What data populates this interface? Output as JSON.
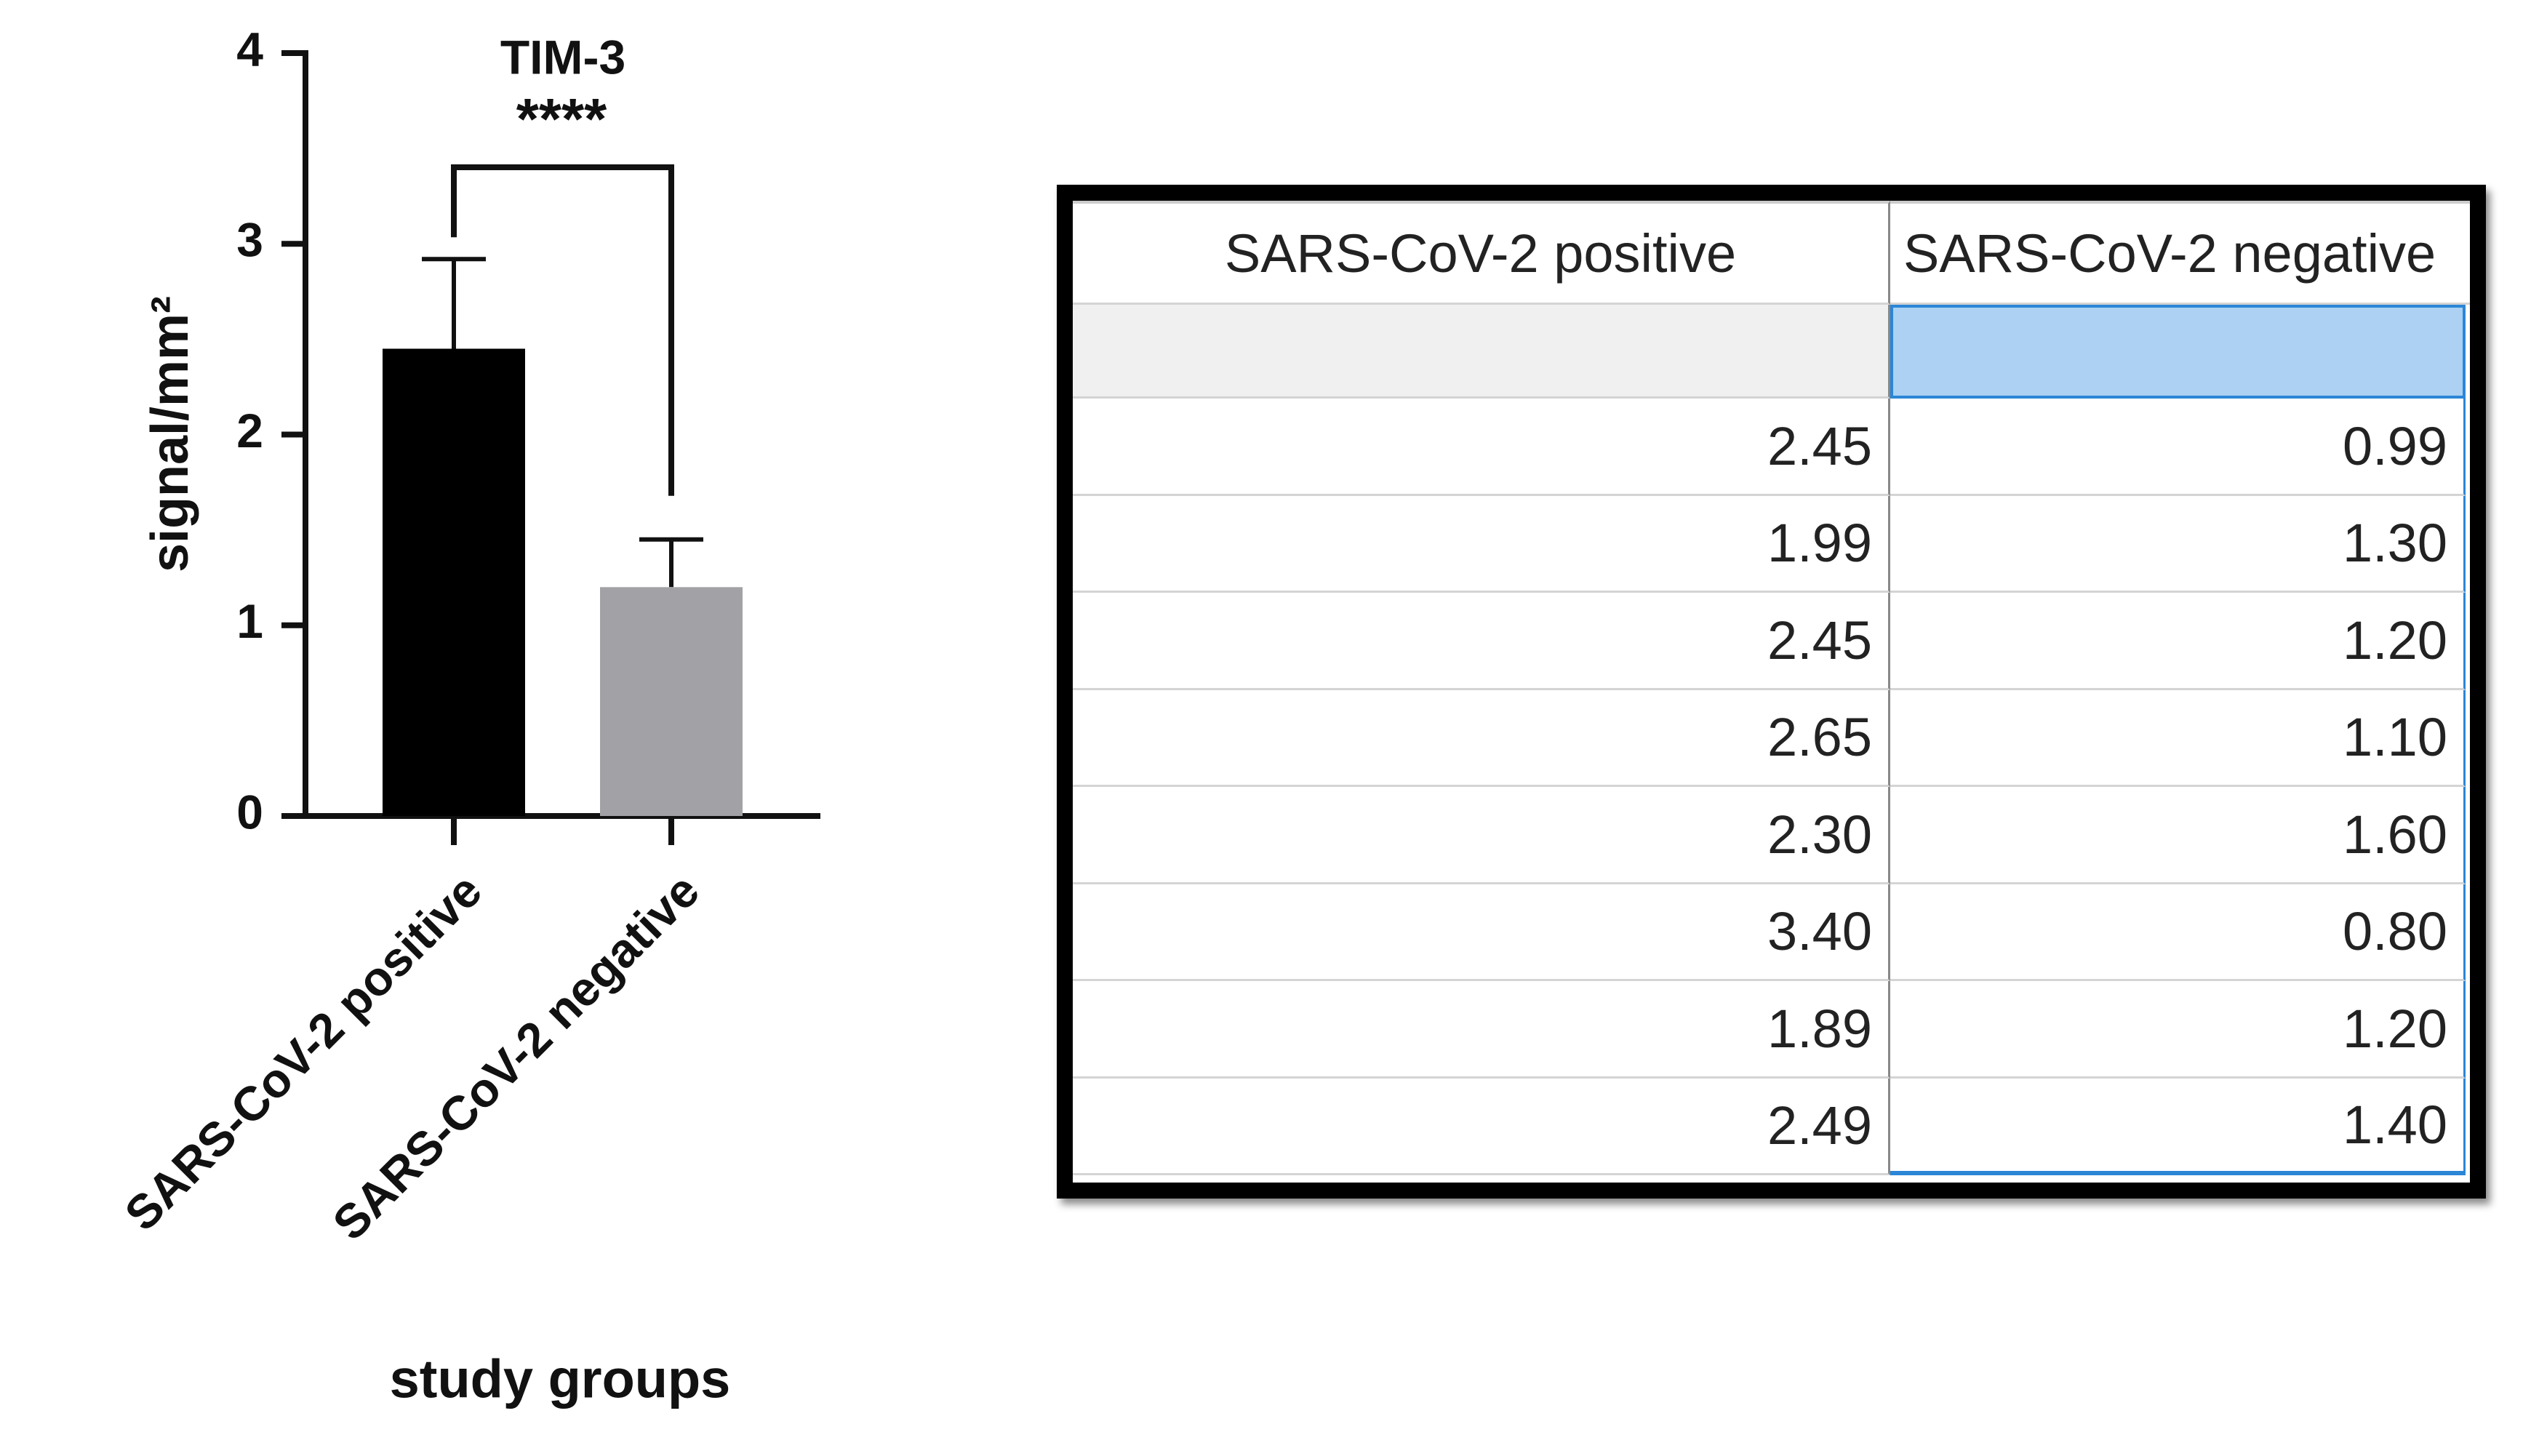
{
  "chart_data": {
    "type": "bar",
    "title": "TIM-3",
    "annotation": "****",
    "y_label": "signal/mm²",
    "x_label": "study groups",
    "categories": [
      "SARS-CoV-2 positive",
      "SARS-CoV-2 negative"
    ],
    "values": [
      2.45,
      1.2
    ],
    "errors": [
      0.47,
      0.25
    ],
    "colors": [
      "#000000",
      "#a2a2a6"
    ],
    "ylim": [
      0,
      4
    ],
    "yticks": [
      0,
      1,
      2,
      3,
      4
    ]
  },
  "table": {
    "headers": [
      "SARS-CoV-2 positive",
      "SARS-CoV-2 negative"
    ],
    "rows": [
      [
        "2.45",
        "0.99"
      ],
      [
        "1.99",
        "1.30"
      ],
      [
        "2.45",
        "1.20"
      ],
      [
        "2.65",
        "1.10"
      ],
      [
        "2.30",
        "1.60"
      ],
      [
        "3.40",
        "0.80"
      ],
      [
        "1.89",
        "1.20"
      ],
      [
        "2.49",
        "1.40"
      ]
    ]
  }
}
